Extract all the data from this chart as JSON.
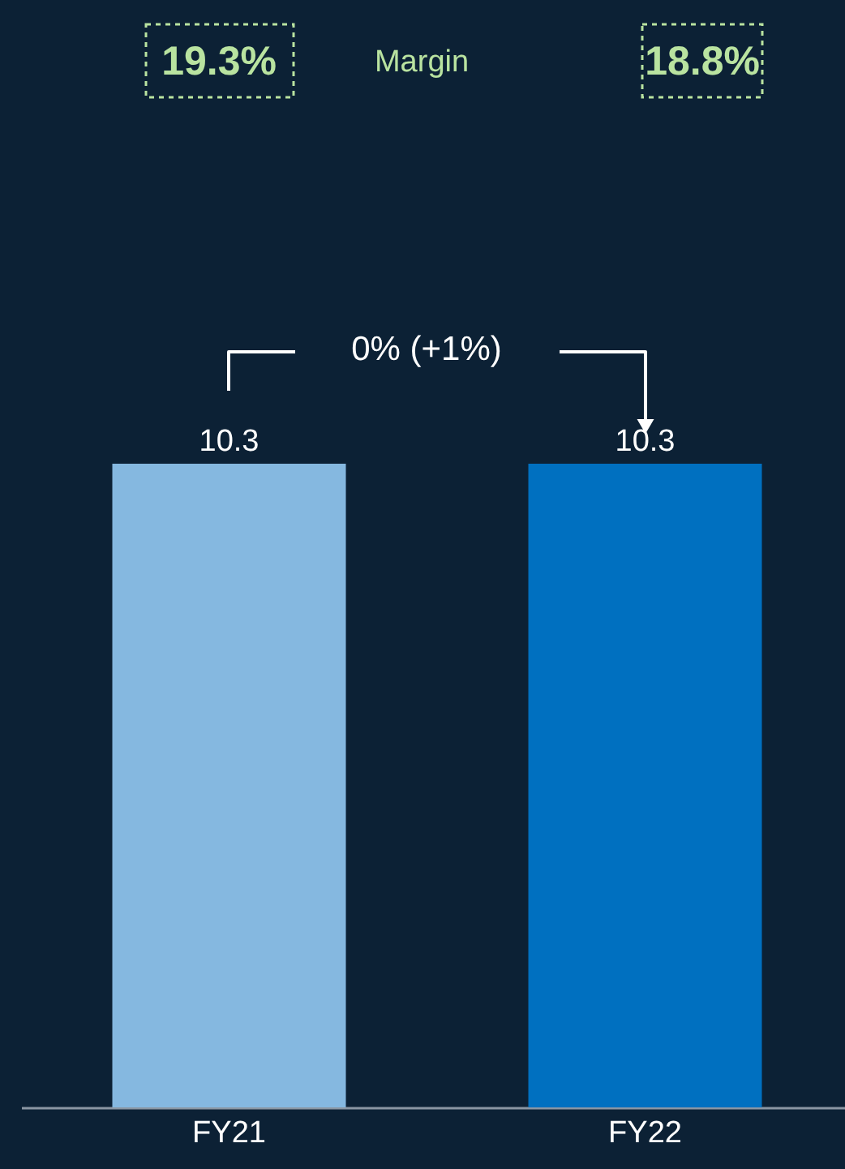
{
  "chart_data": {
    "type": "bar",
    "categories": [
      "FY21",
      "FY22"
    ],
    "values": [
      10.3,
      10.3
    ],
    "colors": [
      "#85b8e0",
      "#0070c0"
    ],
    "data_labels": true,
    "annotations": [
      "19.3%",
      "Margin",
      "18.8%",
      "0% (+1%)"
    ],
    "grid": false
  }
}
